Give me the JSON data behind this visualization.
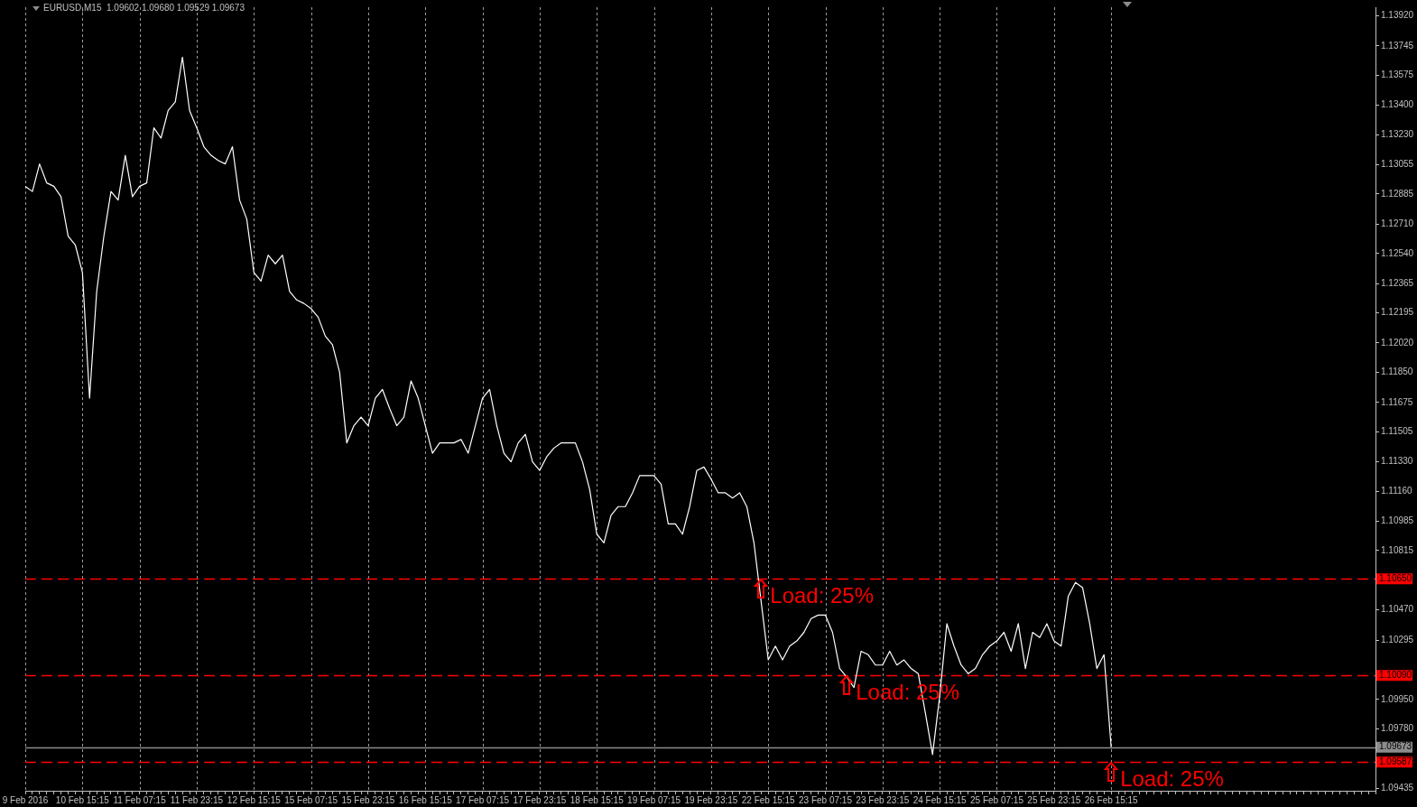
{
  "chart_data": {
    "type": "line",
    "title": "EURUSD,M15  1.09602 1.09680 1.09529 1.09673",
    "categories": [
      "9 Feb 2016",
      null,
      null,
      null,
      null,
      null,
      null,
      null,
      "10 Feb 15:15",
      null,
      null,
      null,
      null,
      null,
      null,
      null,
      "11 Feb 07:15",
      null,
      null,
      null,
      null,
      null,
      null,
      null,
      "11 Feb 23:15",
      null,
      null,
      null,
      null,
      null,
      null,
      null,
      "12 Feb 15:15",
      null,
      null,
      null,
      null,
      null,
      null,
      null,
      "15 Feb 07:15",
      null,
      null,
      null,
      null,
      null,
      null,
      null,
      "15 Feb 23:15",
      null,
      null,
      null,
      null,
      null,
      null,
      null,
      "16 Feb 15:15",
      null,
      null,
      null,
      null,
      null,
      null,
      null,
      "17 Feb 07:15",
      null,
      null,
      null,
      null,
      null,
      null,
      null,
      "17 Feb 23:15",
      null,
      null,
      null,
      null,
      null,
      null,
      null,
      "18 Feb 15:15",
      null,
      null,
      null,
      null,
      null,
      null,
      null,
      "19 Feb 07:15",
      null,
      null,
      null,
      null,
      null,
      null,
      null,
      "19 Feb 23:15",
      null,
      null,
      null,
      null,
      null,
      null,
      null,
      "22 Feb 15:15",
      null,
      null,
      null,
      null,
      null,
      null,
      null,
      "23 Feb 07:15",
      null,
      null,
      null,
      null,
      null,
      null,
      null,
      "23 Feb 23:15",
      null,
      null,
      null,
      null,
      null,
      null,
      null,
      "24 Feb 15:15",
      null,
      null,
      null,
      null,
      null,
      null,
      null,
      "25 Feb 07:15",
      null,
      null,
      null,
      null,
      null,
      null,
      null,
      "25 Feb 23:15",
      null,
      null,
      null,
      null,
      null,
      null,
      null,
      "26 Feb 15:15",
      null,
      null,
      null,
      null,
      null,
      null,
      null,
      null,
      null,
      null,
      null,
      null,
      null,
      null,
      null,
      null,
      null,
      null,
      null,
      null,
      null,
      null,
      null,
      null,
      null,
      null,
      null,
      null,
      null,
      null,
      null,
      null,
      null,
      null,
      null,
      null,
      null
    ],
    "series": [
      {
        "color": "#ffffff",
        "values": [
          1.1293,
          1.129,
          1.1306,
          1.1295,
          1.1293,
          1.1287,
          1.1264,
          1.1259,
          1.1243,
          1.117,
          1.1232,
          1.1264,
          1.129,
          1.1285,
          1.1311,
          1.1287,
          1.1293,
          1.1295,
          1.1327,
          1.1321,
          1.1337,
          1.1342,
          1.1368,
          1.1337,
          1.1327,
          1.1316,
          1.1311,
          1.1308,
          1.1306,
          1.1316,
          1.1285,
          1.1274,
          1.1243,
          1.1238,
          1.1253,
          1.1248,
          1.1253,
          1.1232,
          1.1227,
          1.1225,
          1.1222,
          1.1217,
          1.1206,
          1.1201,
          1.1185,
          1.1144,
          1.1154,
          1.1159,
          1.1154,
          1.117,
          1.1175,
          1.1164,
          1.1154,
          1.1159,
          1.118,
          1.117,
          1.1154,
          1.1138,
          1.1144,
          1.1144,
          1.1144,
          1.1146,
          1.1138,
          1.1154,
          1.117,
          1.1175,
          1.1154,
          1.1138,
          1.1133,
          1.1144,
          1.1149,
          1.1133,
          1.1128,
          1.1136,
          1.1141,
          1.1144,
          1.1144,
          1.1144,
          1.1133,
          1.1117,
          1.1091,
          1.1086,
          1.1102,
          1.1107,
          1.1107,
          1.1115,
          1.1125,
          1.1125,
          1.1125,
          1.112,
          1.1097,
          1.1097,
          1.1091,
          1.1107,
          1.1128,
          1.113,
          1.1123,
          1.1115,
          1.1115,
          1.1112,
          1.1115,
          1.1107,
          1.1086,
          1.1052,
          1.1018,
          1.1026,
          1.1018,
          1.1026,
          1.1029,
          1.1034,
          1.1042,
          1.1044,
          1.1044,
          1.1034,
          1.1013,
          1.1008,
          1.1002,
          1.1023,
          1.1021,
          1.1015,
          1.1015,
          1.1023,
          1.1015,
          1.1018,
          1.1013,
          1.101,
          1.0987,
          1.0963,
          1.0997,
          1.1039,
          1.1026,
          1.1015,
          1.101,
          1.1013,
          1.1021,
          1.1026,
          1.1029,
          1.1034,
          1.1023,
          1.1039,
          1.1013,
          1.1034,
          1.1031,
          1.1039,
          1.1029,
          1.1026,
          1.1055,
          1.1063,
          1.106,
          1.1039,
          1.1013,
          1.1021,
          1.09673,
          null,
          null,
          null,
          null,
          null,
          null,
          null,
          null,
          null,
          null,
          null,
          null,
          null,
          null,
          null,
          null,
          null,
          null,
          null,
          null,
          null,
          null,
          null,
          null,
          null,
          null,
          null,
          null,
          null,
          null,
          null,
          null,
          null,
          null,
          null,
          null,
          null
        ]
      }
    ],
    "ylim": [
      1.0942,
      1.1397
    ],
    "yticks": [
      {
        "value": 1.1392,
        "label": "1.13920"
      },
      {
        "value": 1.13745,
        "label": "1.13745"
      },
      {
        "value": 1.13575,
        "label": "1.13575"
      },
      {
        "value": 1.134,
        "label": "1.13400"
      },
      {
        "value": 1.1323,
        "label": "1.13230"
      },
      {
        "value": 1.13055,
        "label": "1.13055"
      },
      {
        "value": 1.12885,
        "label": "1.12885"
      },
      {
        "value": 1.1271,
        "label": "1.12710"
      },
      {
        "value": 1.1254,
        "label": "1.12540"
      },
      {
        "value": 1.12365,
        "label": "1.12365"
      },
      {
        "value": 1.12195,
        "label": "1.12195"
      },
      {
        "value": 1.1202,
        "label": "1.12020"
      },
      {
        "value": 1.1185,
        "label": "1.11850"
      },
      {
        "value": 1.11675,
        "label": "1.11675"
      },
      {
        "value": 1.11505,
        "label": "1.11505"
      },
      {
        "value": 1.1133,
        "label": "1.11330"
      },
      {
        "value": 1.1116,
        "label": "1.11160"
      },
      {
        "value": 1.10985,
        "label": "1.10985"
      },
      {
        "value": 1.10815,
        "label": "1.10815"
      },
      {
        "value": 1.1047,
        "label": "1.10470"
      },
      {
        "value": 1.10295,
        "label": "1.10295"
      },
      {
        "value": 1.0995,
        "label": "1.09950"
      },
      {
        "value": 1.0978,
        "label": "1.09780"
      },
      {
        "value": 1.09435,
        "label": "1.09435"
      }
    ],
    "grid": "x",
    "marker": "none",
    "ref_lines": [
      {
        "axis": "y",
        "value": 1.1065,
        "label": "1.10650",
        "color": "#ff0000",
        "line_style": "dashed"
      },
      {
        "axis": "y",
        "value": 1.1009,
        "label": "1.10090",
        "color": "#ff0000",
        "line_style": "dashed"
      },
      {
        "axis": "y",
        "value": 1.09673,
        "label": "1.09673",
        "color": "#8c8c8c",
        "line_style": "solid"
      },
      {
        "axis": "y",
        "value": 1.09587,
        "label": "1.09587",
        "color": "#ff0000",
        "line_style": "dashed"
      }
    ],
    "annotations": [
      {
        "text": "Load: 25%",
        "y": 1.1065
      },
      {
        "text": "Load: 25%",
        "y": 1.1009
      },
      {
        "text": "Load: 25%",
        "y": 1.09587
      }
    ]
  }
}
